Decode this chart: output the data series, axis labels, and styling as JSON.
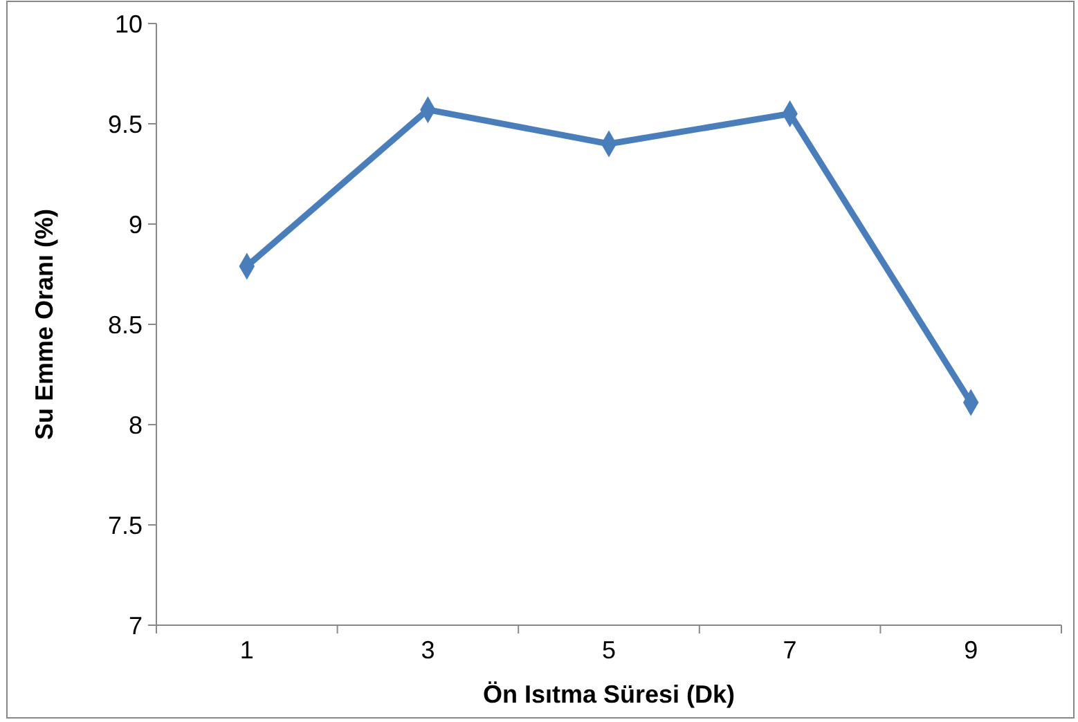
{
  "chart_data": {
    "type": "line",
    "xlabel": "Ön Isıtma Süresi (Dk)",
    "ylabel": "Su Emme Oranı (%)",
    "categories": [
      "1",
      "3",
      "5",
      "7",
      "9"
    ],
    "series": [
      {
        "color": "#4a7ebb",
        "values": [
          8.79,
          9.57,
          9.4,
          9.55,
          8.11
        ]
      }
    ],
    "ylim": [
      7,
      10
    ],
    "yticks": [
      7,
      7.5,
      8,
      8.5,
      9,
      9.5,
      10
    ],
    "marker": "diamond",
    "line_style": "solid"
  }
}
